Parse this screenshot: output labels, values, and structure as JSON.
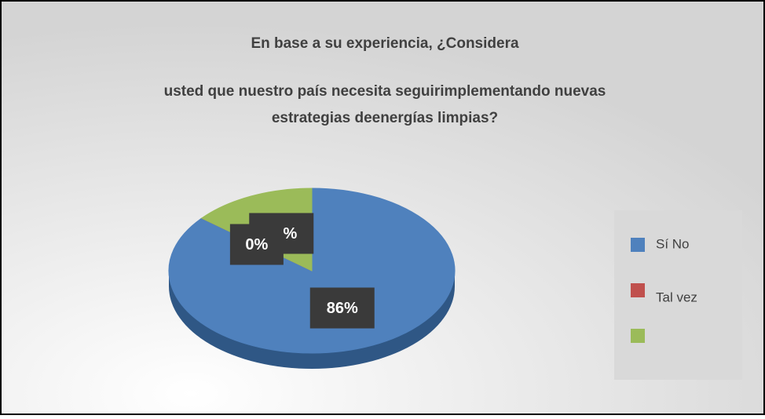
{
  "chart_data": {
    "type": "pie",
    "title": [
      "En base a su experiencia, ¿Considera",
      "usted que nuestro país necesita seguirimplementando nuevas",
      "estrategias deenergías limpias?"
    ],
    "categories": [
      "Sí No",
      "Tal vez",
      null
    ],
    "values": [
      86,
      0,
      14
    ],
    "value_labels": [
      "86%",
      "0%",
      "14%"
    ],
    "colors": [
      "#4f81bd",
      "#c0504d",
      "#9bbb59"
    ],
    "legend": "right"
  }
}
